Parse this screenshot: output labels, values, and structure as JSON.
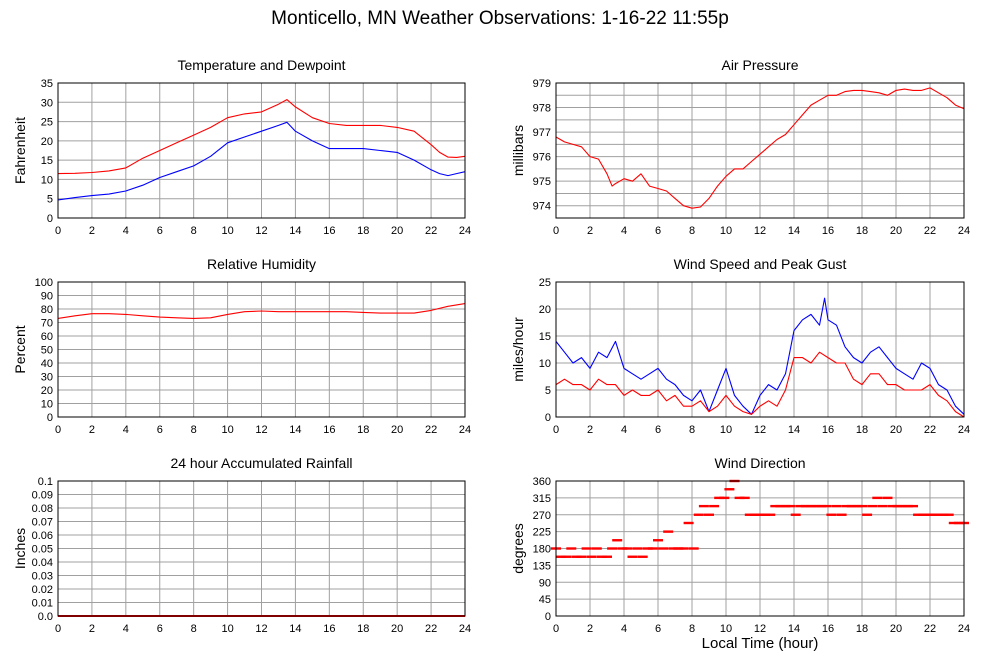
{
  "page": {
    "title": "Monticello, MN Weather Observations: 1-16-22 11:55p",
    "xlabel": "Local Time (hour)"
  },
  "colors": {
    "primary": "#ff0000",
    "secondary": "#0000ff",
    "grid": "#a0a0a0",
    "frame": "#000000"
  },
  "chart_data": [
    {
      "id": "temp",
      "type": "line",
      "title": "Temperature and Dewpoint",
      "ylabel": "Fahrenheit",
      "xlim": [
        0,
        24
      ],
      "ylim": [
        0,
        35
      ],
      "xticks": [
        0,
        2,
        4,
        6,
        8,
        10,
        12,
        14,
        16,
        18,
        20,
        22,
        24
      ],
      "yticks": [
        "0",
        "5",
        "10",
        "15",
        "20",
        "25",
        "30",
        "35"
      ],
      "grid": true,
      "series": [
        {
          "color": "#ff0000",
          "x": [
            0,
            1,
            2,
            3,
            4,
            5,
            6,
            7,
            8,
            9,
            10,
            11,
            12,
            13,
            13.5,
            14,
            15,
            16,
            17,
            18,
            19,
            20,
            21,
            22,
            22.5,
            23,
            23.5,
            24
          ],
          "y": [
            11.5,
            11.6,
            11.8,
            12.2,
            13,
            15.5,
            17.5,
            19.5,
            21.5,
            23.5,
            26,
            27,
            27.5,
            29.5,
            30.7,
            28.8,
            26,
            24.5,
            24,
            24,
            24,
            23.5,
            22.5,
            19,
            17,
            15.8,
            15.7,
            16
          ]
        },
        {
          "color": "#0000ff",
          "x": [
            0,
            1,
            2,
            3,
            4,
            5,
            6,
            7,
            8,
            9,
            10,
            11,
            12,
            13,
            13.5,
            14,
            15,
            16,
            17,
            18,
            19,
            20,
            21,
            22,
            22.5,
            23,
            23.5,
            24
          ],
          "y": [
            4.7,
            5.3,
            5.8,
            6.2,
            7,
            8.5,
            10.5,
            12,
            13.5,
            16,
            19.5,
            21,
            22.5,
            24,
            24.8,
            22.5,
            20,
            18,
            18,
            18,
            17.5,
            17,
            15,
            12.5,
            11.5,
            11,
            11.5,
            12
          ]
        }
      ]
    },
    {
      "id": "pressure",
      "type": "line",
      "title": "Air Pressure",
      "ylabel": "millibars",
      "xlim": [
        0,
        24
      ],
      "ylim": [
        973.5,
        979
      ],
      "xticks": [
        0,
        2,
        4,
        6,
        8,
        10,
        12,
        14,
        16,
        18,
        20,
        22,
        24
      ],
      "yticks": [
        "974",
        "975",
        "976",
        "977",
        "978",
        "979"
      ],
      "grid": true,
      "series": [
        {
          "color": "#ff0000",
          "x": [
            0,
            0.5,
            1,
            1.5,
            2,
            2.5,
            3,
            3.3,
            3.5,
            4,
            4.5,
            5,
            5.5,
            6,
            6.5,
            7,
            7.5,
            8,
            8.5,
            9,
            9.5,
            10,
            10.5,
            11,
            11.5,
            12,
            12.5,
            13,
            13.5,
            14,
            14.5,
            15,
            15.5,
            16,
            16.5,
            17,
            17.5,
            18,
            18.5,
            19,
            19.5,
            20,
            20.5,
            21,
            21.5,
            22,
            22.5,
            23,
            23.5,
            24
          ],
          "y": [
            976.8,
            976.6,
            976.5,
            976.4,
            976,
            975.9,
            975.3,
            974.8,
            974.9,
            975.1,
            975,
            975.3,
            974.8,
            974.7,
            974.6,
            974.3,
            974,
            973.9,
            973.95,
            974.3,
            974.8,
            975.2,
            975.5,
            975.5,
            975.8,
            976.1,
            976.4,
            976.7,
            976.9,
            977.3,
            977.7,
            978.1,
            978.3,
            978.5,
            978.5,
            978.65,
            978.7,
            978.7,
            978.65,
            978.6,
            978.5,
            978.7,
            978.75,
            978.7,
            978.7,
            978.8,
            978.6,
            978.4,
            978.1,
            977.95
          ]
        }
      ]
    },
    {
      "id": "humidity",
      "type": "line",
      "title": "Relative Humidity",
      "ylabel": "Percent",
      "xlim": [
        0,
        24
      ],
      "ylim": [
        0,
        100
      ],
      "xticks": [
        0,
        2,
        4,
        6,
        8,
        10,
        12,
        14,
        16,
        18,
        20,
        22,
        24
      ],
      "yticks": [
        "0",
        "10",
        "20",
        "30",
        "40",
        "50",
        "60",
        "70",
        "80",
        "90",
        "100"
      ],
      "grid": true,
      "series": [
        {
          "color": "#ff0000",
          "x": [
            0,
            1,
            2,
            3,
            4,
            5,
            6,
            7,
            8,
            9,
            10,
            11,
            12,
            13,
            14,
            15,
            16,
            17,
            18,
            19,
            20,
            21,
            22,
            23,
            24
          ],
          "y": [
            73,
            75,
            76.5,
            76.5,
            76,
            75,
            74,
            73.5,
            73,
            73.5,
            76,
            78,
            78.5,
            78,
            78,
            78,
            78,
            78,
            77.5,
            77,
            77,
            77,
            79,
            82,
            84
          ]
        }
      ]
    },
    {
      "id": "wind",
      "type": "line",
      "title": "Wind Speed and Peak Gust",
      "ylabel": "miles/hour",
      "xlim": [
        0,
        24
      ],
      "ylim": [
        0,
        25
      ],
      "xticks": [
        0,
        2,
        4,
        6,
        8,
        10,
        12,
        14,
        16,
        18,
        20,
        22,
        24
      ],
      "yticks": [
        "0",
        "5",
        "10",
        "15",
        "20",
        "25"
      ],
      "grid": true,
      "series": [
        {
          "color": "#0000ff",
          "x": [
            0,
            0.5,
            1,
            1.5,
            2,
            2.5,
            3,
            3.5,
            4,
            4.5,
            5,
            5.5,
            6,
            6.5,
            7,
            7.5,
            8,
            8.5,
            9,
            9.5,
            10,
            10.5,
            11,
            11.5,
            12,
            12.5,
            13,
            13.5,
            14,
            14.5,
            15,
            15.5,
            15.8,
            16,
            16.5,
            17,
            17.5,
            18,
            18.5,
            19,
            19.5,
            20,
            20.5,
            21,
            21.5,
            22,
            22.5,
            23,
            23.5,
            24
          ],
          "y": [
            14,
            12,
            10,
            11,
            9,
            12,
            11,
            14,
            9,
            8,
            7,
            8,
            9,
            7,
            6,
            4,
            3,
            5,
            1,
            5,
            9,
            4,
            2,
            0.5,
            4,
            6,
            5,
            8,
            16,
            18,
            19,
            17,
            22,
            18,
            17,
            13,
            11,
            10,
            12,
            13,
            11,
            9,
            8,
            7,
            10,
            9,
            6,
            5,
            2,
            0.5
          ]
        },
        {
          "color": "#ff0000",
          "x": [
            0,
            0.5,
            1,
            1.5,
            2,
            2.5,
            3,
            3.5,
            4,
            4.5,
            5,
            5.5,
            6,
            6.5,
            7,
            7.5,
            8,
            8.5,
            9,
            9.5,
            10,
            10.5,
            11,
            11.5,
            12,
            12.5,
            13,
            13.5,
            14,
            14.5,
            15,
            15.5,
            16,
            16.5,
            17,
            17.5,
            18,
            18.5,
            19,
            19.5,
            20,
            20.5,
            21,
            21.5,
            22,
            22.5,
            23,
            23.5,
            24
          ],
          "y": [
            6,
            7,
            6,
            6,
            5,
            7,
            6,
            6,
            4,
            5,
            4,
            4,
            5,
            3,
            4,
            2,
            2,
            3,
            1,
            2,
            4,
            2,
            1,
            0.5,
            2,
            3,
            2,
            5,
            11,
            11,
            10,
            12,
            11,
            10,
            10,
            7,
            6,
            8,
            8,
            6,
            6,
            5,
            5,
            5,
            6,
            4,
            3,
            1,
            0
          ]
        }
      ]
    },
    {
      "id": "rain",
      "type": "line",
      "title": "24 hour Accumulated Rainfall",
      "ylabel": "Inches",
      "xlim": [
        0,
        24
      ],
      "ylim": [
        0,
        0.1
      ],
      "xticks": [
        0,
        2,
        4,
        6,
        8,
        10,
        12,
        14,
        16,
        18,
        20,
        22,
        24
      ],
      "yticks": [
        "0.0",
        "0.01",
        "0.02",
        "0.03",
        "0.04",
        "0.05",
        "0.06",
        "0.07",
        "0.08",
        "0.09",
        "0.1"
      ],
      "grid": true,
      "series": [
        {
          "color": "#ff0000",
          "x": [
            0,
            24
          ],
          "y": [
            0,
            0
          ]
        }
      ]
    },
    {
      "id": "direction",
      "type": "scatter",
      "title": "Wind Direction",
      "ylabel": "degrees",
      "xlim": [
        0,
        24
      ],
      "ylim": [
        0,
        360
      ],
      "xticks": [
        0,
        2,
        4,
        6,
        8,
        10,
        12,
        14,
        16,
        18,
        20,
        22,
        24
      ],
      "yticks": [
        "0",
        "45",
        "90",
        "135",
        "180",
        "225",
        "270",
        "315",
        "360"
      ],
      "grid": true,
      "series": [
        {
          "color": "#ff0000",
          "x": [
            0,
            0.3,
            0.6,
            0.9,
            1.2,
            1.5,
            1.8,
            2.1,
            2.4,
            2.7,
            3,
            3.3,
            3.6,
            3.9,
            4.2,
            4.5,
            4.8,
            5.1,
            5.4,
            5.7,
            6,
            6.3,
            6.6,
            6.9,
            7.2,
            7.5,
            7.8,
            8.1,
            8.4,
            8.7,
            9,
            9.3,
            9.6,
            9.9,
            10.2,
            10.5,
            10.8,
            11.1,
            11.4,
            11.7,
            12,
            12.3,
            12.6,
            12.9,
            13.2,
            13.5,
            13.8,
            14.1,
            14.4,
            14.7,
            15,
            15.3,
            15.6,
            15.9,
            16.2,
            16.5,
            16.8,
            17.1,
            17.4,
            17.7,
            18,
            18.3,
            18.6,
            18.9,
            19.2,
            19.5,
            19.8,
            20.1,
            20.4,
            20.7,
            21,
            21.3,
            21.6,
            21.9,
            22.2,
            22.5,
            22.8,
            23.1,
            23.4,
            23.7,
            24
          ],
          "y": [
            180,
            158,
            158,
            180,
            158,
            158,
            180,
            158,
            180,
            158,
            158,
            180,
            202,
            180,
            180,
            158,
            180,
            158,
            180,
            180,
            202,
            180,
            225,
            180,
            180,
            180,
            248,
            180,
            270,
            293,
            270,
            293,
            315,
            315,
            338,
            360,
            315,
            315,
            270,
            270,
            270,
            270,
            270,
            293,
            293,
            293,
            293,
            270,
            293,
            293,
            293,
            293,
            293,
            293,
            270,
            293,
            270,
            293,
            293,
            293,
            293,
            270,
            293,
            315,
            293,
            315,
            293,
            293,
            293,
            293,
            293,
            270,
            270,
            270,
            270,
            270,
            270,
            270,
            248,
            248,
            248
          ]
        }
      ]
    }
  ]
}
